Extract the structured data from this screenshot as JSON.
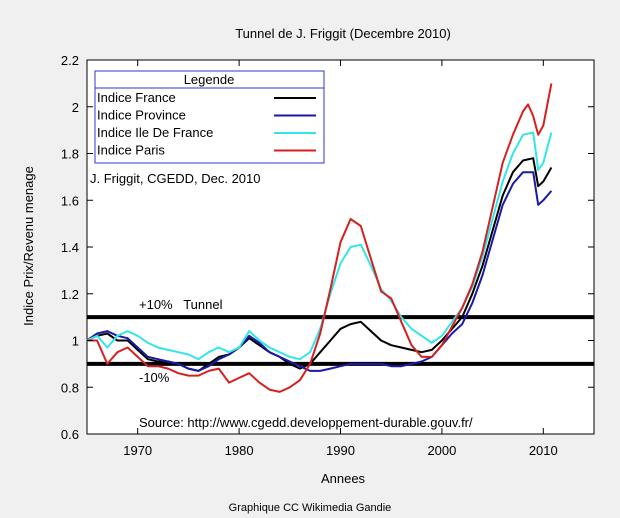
{
  "chart_data": {
    "type": "line",
    "title": "Tunnel de J. Friggit (Decembre 2010)",
    "xlabel": "Annees",
    "ylabel": "Indice Prix/Revenu menage",
    "xlim": [
      1965,
      2015
    ],
    "ylim": [
      0.6,
      2.2
    ],
    "xticks": [
      1970,
      1980,
      1990,
      2000,
      2010
    ],
    "yticks": [
      0.6,
      0.8,
      1,
      1.2,
      1.4,
      1.6,
      1.8,
      2,
      2.2
    ],
    "xtick_labels": [
      "1970",
      "1980",
      "1990",
      "2000",
      "2010"
    ],
    "ytick_labels": [
      "0.6",
      "0.8",
      "1",
      "1.2",
      "1.4",
      "1.6",
      "1.8",
      "2",
      "2.2"
    ],
    "grid": false,
    "legend": {
      "title": "Legende",
      "position": "top-left"
    },
    "annotations": {
      "author": "J. Friggit, CGEDD, Dec. 2010",
      "upper_band_label": "+10%   Tunnel",
      "lower_band_label": "-10%",
      "source": "Source: http://www.cgedd.developpement-durable.gouv.fr/"
    },
    "reference_lines": [
      {
        "y": 1.1,
        "color": "#000000"
      },
      {
        "y": 0.9,
        "color": "#000000"
      }
    ],
    "series": [
      {
        "name": "Indice France",
        "color": "#000000",
        "points": [
          [
            1965,
            1.0
          ],
          [
            1966,
            1.02
          ],
          [
            1967,
            1.03
          ],
          [
            1968,
            1.0
          ],
          [
            1969,
            1.0
          ],
          [
            1970,
            0.96
          ],
          [
            1971,
            0.92
          ],
          [
            1972,
            0.91
          ],
          [
            1973,
            0.91
          ],
          [
            1974,
            0.9
          ],
          [
            1975,
            0.88
          ],
          [
            1976,
            0.87
          ],
          [
            1977,
            0.9
          ],
          [
            1978,
            0.93
          ],
          [
            1979,
            0.94
          ],
          [
            1980,
            0.97
          ],
          [
            1981,
            1.01
          ],
          [
            1982,
            0.98
          ],
          [
            1983,
            0.95
          ],
          [
            1984,
            0.93
          ],
          [
            1985,
            0.9
          ],
          [
            1986,
            0.88
          ],
          [
            1987,
            0.9
          ],
          [
            1988,
            0.95
          ],
          [
            1989,
            1.0
          ],
          [
            1990,
            1.05
          ],
          [
            1991,
            1.07
          ],
          [
            1992,
            1.08
          ],
          [
            1993,
            1.04
          ],
          [
            1994,
            1.0
          ],
          [
            1995,
            0.98
          ],
          [
            1996,
            0.97
          ],
          [
            1997,
            0.96
          ],
          [
            1998,
            0.95
          ],
          [
            1999,
            0.96
          ],
          [
            2000,
            1.0
          ],
          [
            2001,
            1.05
          ],
          [
            2002,
            1.1
          ],
          [
            2003,
            1.2
          ],
          [
            2004,
            1.32
          ],
          [
            2005,
            1.47
          ],
          [
            2006,
            1.62
          ],
          [
            2007,
            1.72
          ],
          [
            2008,
            1.77
          ],
          [
            2009,
            1.78
          ],
          [
            2009.5,
            1.66
          ],
          [
            2010,
            1.68
          ],
          [
            2010.8,
            1.74
          ]
        ]
      },
      {
        "name": "Indice Province",
        "color": "#1a1aa6",
        "points": [
          [
            1965,
            1.0
          ],
          [
            1966,
            1.03
          ],
          [
            1967,
            1.04
          ],
          [
            1968,
            1.02
          ],
          [
            1969,
            1.01
          ],
          [
            1970,
            0.97
          ],
          [
            1971,
            0.93
          ],
          [
            1972,
            0.92
          ],
          [
            1973,
            0.91
          ],
          [
            1974,
            0.9
          ],
          [
            1975,
            0.88
          ],
          [
            1976,
            0.87
          ],
          [
            1977,
            0.89
          ],
          [
            1978,
            0.92
          ],
          [
            1979,
            0.94
          ],
          [
            1980,
            0.97
          ],
          [
            1981,
            1.02
          ],
          [
            1982,
            0.99
          ],
          [
            1983,
            0.95
          ],
          [
            1984,
            0.93
          ],
          [
            1985,
            0.91
          ],
          [
            1986,
            0.89
          ],
          [
            1987,
            0.87
          ],
          [
            1988,
            0.87
          ],
          [
            1989,
            0.88
          ],
          [
            1990,
            0.89
          ],
          [
            1991,
            0.9
          ],
          [
            1992,
            0.9
          ],
          [
            1993,
            0.9
          ],
          [
            1994,
            0.9
          ],
          [
            1995,
            0.89
          ],
          [
            1996,
            0.89
          ],
          [
            1997,
            0.9
          ],
          [
            1998,
            0.91
          ],
          [
            1999,
            0.93
          ],
          [
            2000,
            0.98
          ],
          [
            2001,
            1.03
          ],
          [
            2002,
            1.07
          ],
          [
            2003,
            1.16
          ],
          [
            2004,
            1.28
          ],
          [
            2005,
            1.43
          ],
          [
            2006,
            1.58
          ],
          [
            2007,
            1.67
          ],
          [
            2008,
            1.72
          ],
          [
            2009,
            1.72
          ],
          [
            2009.5,
            1.58
          ],
          [
            2010,
            1.6
          ],
          [
            2010.8,
            1.64
          ]
        ]
      },
      {
        "name": "Indice Ile De France",
        "color": "#33e6e6",
        "points": [
          [
            1965,
            1.0
          ],
          [
            1966,
            1.02
          ],
          [
            1967,
            0.97
          ],
          [
            1968,
            1.02
          ],
          [
            1969,
            1.04
          ],
          [
            1970,
            1.02
          ],
          [
            1971,
            0.99
          ],
          [
            1972,
            0.97
          ],
          [
            1973,
            0.96
          ],
          [
            1974,
            0.95
          ],
          [
            1975,
            0.94
          ],
          [
            1976,
            0.92
          ],
          [
            1977,
            0.95
          ],
          [
            1978,
            0.97
          ],
          [
            1979,
            0.95
          ],
          [
            1980,
            0.97
          ],
          [
            1981,
            1.04
          ],
          [
            1982,
            1.0
          ],
          [
            1983,
            0.97
          ],
          [
            1984,
            0.95
          ],
          [
            1985,
            0.93
          ],
          [
            1986,
            0.92
          ],
          [
            1987,
            0.95
          ],
          [
            1988,
            1.05
          ],
          [
            1989,
            1.2
          ],
          [
            1990,
            1.33
          ],
          [
            1991,
            1.4
          ],
          [
            1992,
            1.41
          ],
          [
            1993,
            1.32
          ],
          [
            1994,
            1.22
          ],
          [
            1995,
            1.17
          ],
          [
            1996,
            1.1
          ],
          [
            1997,
            1.05
          ],
          [
            1998,
            1.02
          ],
          [
            1999,
            0.99
          ],
          [
            2000,
            1.02
          ],
          [
            2001,
            1.08
          ],
          [
            2002,
            1.14
          ],
          [
            2003,
            1.23
          ],
          [
            2004,
            1.36
          ],
          [
            2005,
            1.52
          ],
          [
            2006,
            1.68
          ],
          [
            2007,
            1.8
          ],
          [
            2008,
            1.88
          ],
          [
            2009,
            1.89
          ],
          [
            2009.5,
            1.73
          ],
          [
            2010,
            1.76
          ],
          [
            2010.8,
            1.89
          ]
        ]
      },
      {
        "name": "Indice Paris",
        "color": "#d62020",
        "points": [
          [
            1965,
            1.0
          ],
          [
            1966,
            1.0
          ],
          [
            1967,
            0.9
          ],
          [
            1968,
            0.95
          ],
          [
            1969,
            0.97
          ],
          [
            1970,
            0.93
          ],
          [
            1971,
            0.89
          ],
          [
            1972,
            0.89
          ],
          [
            1973,
            0.88
          ],
          [
            1974,
            0.86
          ],
          [
            1975,
            0.85
          ],
          [
            1976,
            0.85
          ],
          [
            1977,
            0.87
          ],
          [
            1978,
            0.88
          ],
          [
            1979,
            0.82
          ],
          [
            1980,
            0.84
          ],
          [
            1981,
            0.86
          ],
          [
            1982,
            0.82
          ],
          [
            1983,
            0.79
          ],
          [
            1984,
            0.78
          ],
          [
            1985,
            0.8
          ],
          [
            1986,
            0.83
          ],
          [
            1987,
            0.9
          ],
          [
            1988,
            1.03
          ],
          [
            1989,
            1.22
          ],
          [
            1990,
            1.42
          ],
          [
            1991,
            1.52
          ],
          [
            1992,
            1.49
          ],
          [
            1993,
            1.35
          ],
          [
            1994,
            1.21
          ],
          [
            1995,
            1.18
          ],
          [
            1996,
            1.08
          ],
          [
            1997,
            0.98
          ],
          [
            1998,
            0.93
          ],
          [
            1999,
            0.93
          ],
          [
            2000,
            0.98
          ],
          [
            2001,
            1.06
          ],
          [
            2002,
            1.14
          ],
          [
            2003,
            1.24
          ],
          [
            2004,
            1.38
          ],
          [
            2005,
            1.57
          ],
          [
            2006,
            1.76
          ],
          [
            2007,
            1.88
          ],
          [
            2008,
            1.98
          ],
          [
            2008.5,
            2.01
          ],
          [
            2009,
            1.96
          ],
          [
            2009.5,
            1.88
          ],
          [
            2010,
            1.92
          ],
          [
            2010.8,
            2.1
          ]
        ]
      }
    ]
  },
  "footer": {
    "credit": "Graphique CC Wikimedia Gandie"
  }
}
